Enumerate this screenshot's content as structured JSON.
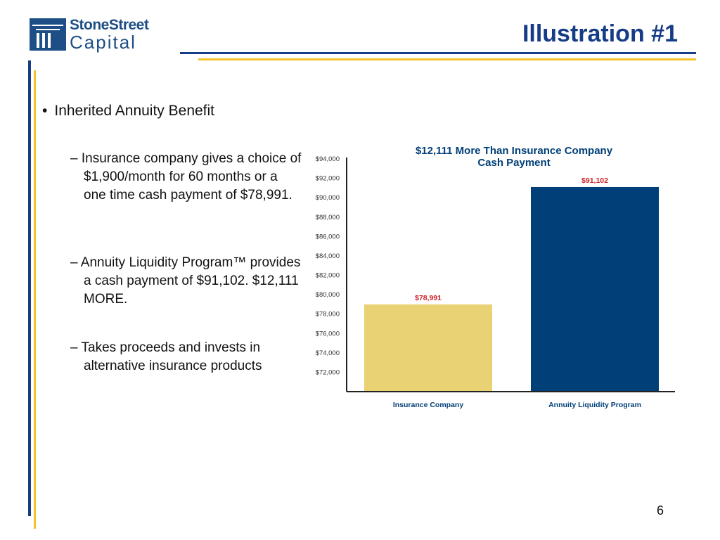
{
  "logo": {
    "line1": "StoneStreet",
    "line2": "Capital"
  },
  "slide": {
    "title": "Illustration #1",
    "page_number": "6"
  },
  "bullets": {
    "main": "Inherited Annuity Benefit",
    "sub": [
      "– Insurance company gives a choice of $1,900/month for 60 months or a one time cash payment of $78,991.",
      "– Annuity Liquidity Program™ provides a cash payment of $91,102.  $12,111 MORE.",
      "– Takes proceeds and invests in alternative insurance products"
    ]
  },
  "colors": {
    "navy": "#163c87",
    "gold": "#f2c32b",
    "bar_gold": "#e9d274",
    "bar_navy": "#003f78",
    "label_red": "#cc2229"
  },
  "chart_data": {
    "type": "bar",
    "title": "$12,111 More Than Insurance Company",
    "subtitle": "Cash Payment",
    "categories": [
      "Insurance Company",
      "Annuity Liquidity Program"
    ],
    "values": [
      78991,
      91102
    ],
    "data_labels": [
      "$78,991",
      "$91,102"
    ],
    "bar_colors": [
      "#e9d274",
      "#003f78"
    ],
    "ylim": [
      70000,
      94000
    ],
    "yticks": [
      72000,
      74000,
      76000,
      78000,
      80000,
      82000,
      84000,
      86000,
      88000,
      90000,
      92000,
      94000
    ],
    "ytick_labels": [
      "$72,000",
      "$74,000",
      "$76,000",
      "$78,000",
      "$80,000",
      "$82,000",
      "$84,000",
      "$86,000",
      "$88,000",
      "$90,000",
      "$92,000",
      "$94,000"
    ],
    "xlabel": "",
    "ylabel": "",
    "grid": false
  }
}
